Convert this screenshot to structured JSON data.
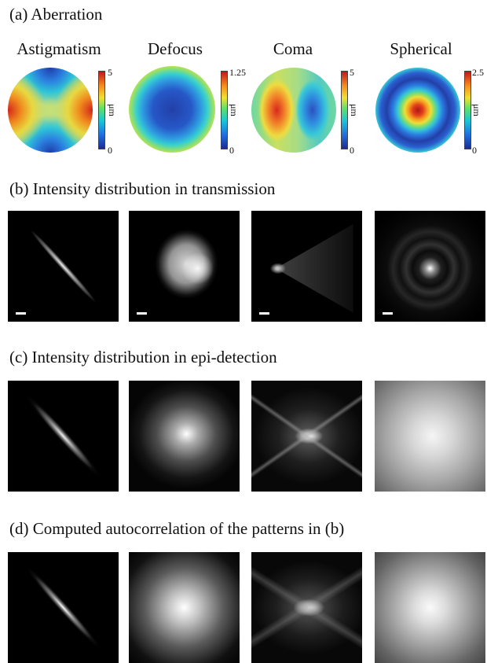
{
  "sections": {
    "a": "(a) Aberration",
    "b": "(b) Intensity distribution in transmission",
    "c": "(c) Intensity distribution in epi-detection",
    "d": "(d) Computed autocorrelation of  the patterns in (b)"
  },
  "aberrations": [
    {
      "name": "Astigmatism",
      "cb_max": "5",
      "cb_min": "0",
      "unit": "μm"
    },
    {
      "name": "Defocus",
      "cb_max": "1.25",
      "cb_min": "0",
      "unit": "μm"
    },
    {
      "name": "Coma",
      "cb_max": "5",
      "cb_min": "0",
      "unit": "μm"
    },
    {
      "name": "Spherical",
      "cb_max": "2.5",
      "cb_min": "0",
      "unit": "μm"
    }
  ]
}
